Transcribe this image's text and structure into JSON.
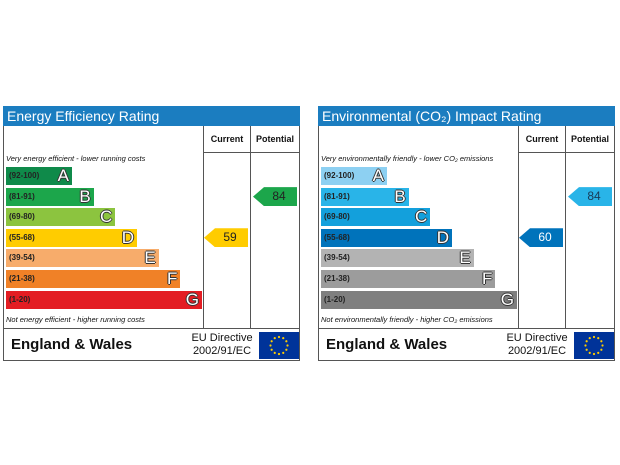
{
  "colors": {
    "header_bg": "#1b7dc0",
    "energy_bands": [
      "#0f8a4a",
      "#1ca64b",
      "#8cc43f",
      "#ffcc00",
      "#f7ac6b",
      "#f08127",
      "#e31d23"
    ],
    "co2_bands": [
      "#8dd0f2",
      "#29b4e8",
      "#13a0dc",
      "#0073bb",
      "#b3b3b3",
      "#9c9c9c",
      "#7f7f7f"
    ],
    "energy_current_arrow": "#ffcc00",
    "energy_potential_arrow": "#1ca64b",
    "co2_current_arrow": "#0073bb",
    "co2_potential_arrow": "#29b4e8",
    "eu_flag": "#003399",
    "eu_stars": "#ffcc00"
  },
  "chart_data": [
    {
      "type": "bar",
      "title": "Energy Efficiency Rating",
      "columns": [
        "Current",
        "Potential"
      ],
      "categories": [
        "(92-100)",
        "(81-91)",
        "(69-80)",
        "(55-68)",
        "(39-54)",
        "(21-38)",
        "(1-20)"
      ],
      "letters": [
        "A",
        "B",
        "C",
        "D",
        "E",
        "F",
        "G"
      ],
      "top_note": "Very energy efficient - lower running costs",
      "bottom_note": "Not energy efficient - higher running costs",
      "current": {
        "value": 59,
        "band": "D",
        "label": "59"
      },
      "potential": {
        "value": 84,
        "band": "B",
        "label": "84"
      },
      "region": "England & Wales",
      "directive": [
        "EU Directive",
        "2002/91/EC"
      ]
    },
    {
      "type": "bar",
      "title": "Environmental (CO₂) Impact Rating",
      "columns": [
        "Current",
        "Potential"
      ],
      "categories": [
        "(92-100)",
        "(81-91)",
        "(69-80)",
        "(55-68)",
        "(39-54)",
        "(21-38)",
        "(1-20)"
      ],
      "letters": [
        "A",
        "B",
        "C",
        "D",
        "E",
        "F",
        "G"
      ],
      "top_note": "Very environmentally friendly - lower CO₂ emissions",
      "bottom_note": "Not environmentally friendly - higher CO₂ emissions",
      "current": {
        "value": 60,
        "band": "D",
        "label": "60"
      },
      "potential": {
        "value": 84,
        "band": "B",
        "label": "84"
      },
      "region": "England & Wales",
      "directive": [
        "EU Directive",
        "2002/91/EC"
      ]
    }
  ]
}
